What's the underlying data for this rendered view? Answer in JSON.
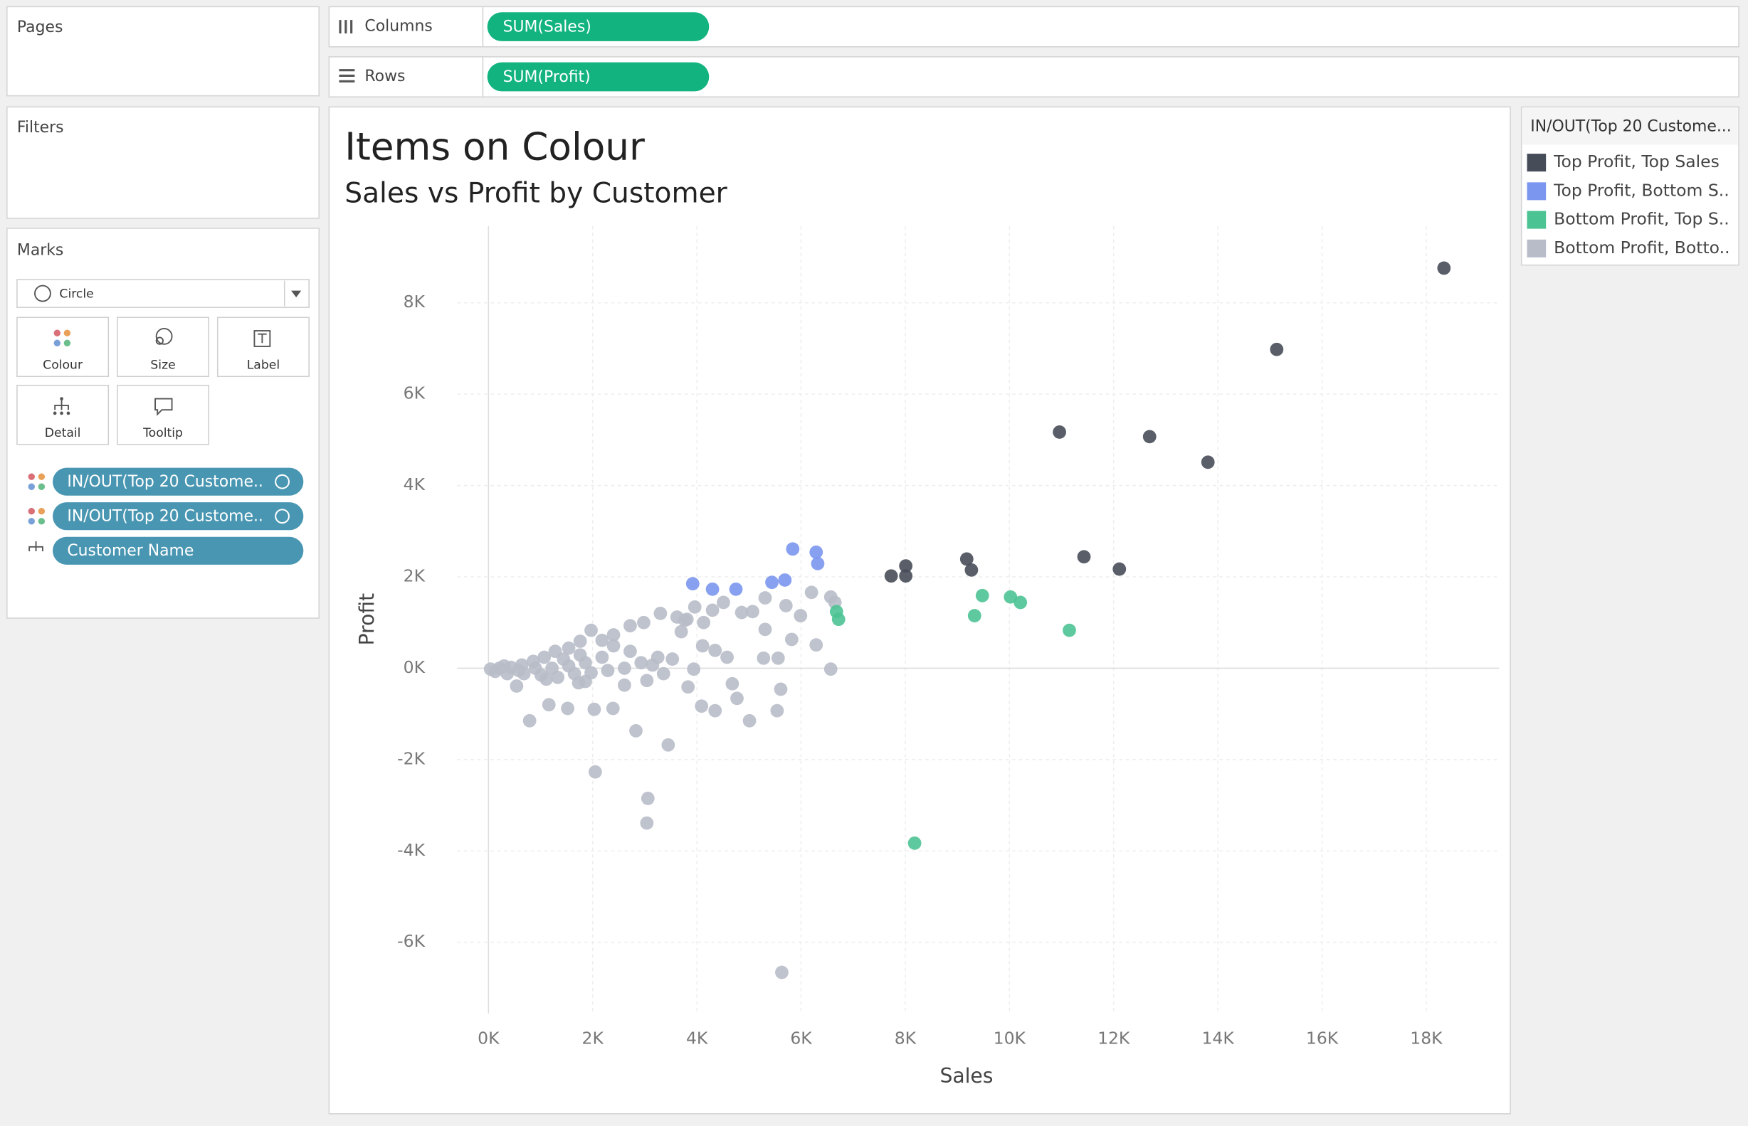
{
  "shelves": {
    "columns": {
      "label": "Columns",
      "pill": "SUM(Sales)"
    },
    "rows": {
      "label": "Rows",
      "pill": "SUM(Profit)"
    }
  },
  "panels": {
    "pages": "Pages",
    "filters": "Filters",
    "marks": {
      "title": "Marks",
      "mark_type": "Circle",
      "buttons": [
        "Colour",
        "Size",
        "Label",
        "Detail",
        "Tooltip"
      ],
      "pills": [
        "IN/OUT(Top 20 Custome..",
        "IN/OUT(Top 20 Custome..",
        "Customer Name"
      ]
    }
  },
  "chart_data": {
    "type": "scatter",
    "title": "Items on Colour",
    "subtitle": "Sales vs Profit by Customer",
    "x_label": "Sales",
    "y_label": "Profit",
    "legend_title": "IN/OUT(Top 20 Custome...",
    "legend": "right",
    "grid": true,
    "xlim": [
      -600,
      19400
    ],
    "ylim": [
      -7560,
      9680
    ],
    "xticks": [
      {
        "value": 0,
        "label": "0K"
      },
      {
        "value": 2000,
        "label": "2K"
      },
      {
        "value": 4000,
        "label": "4K"
      },
      {
        "value": 6000,
        "label": "6K"
      },
      {
        "value": 8000,
        "label": "8K"
      },
      {
        "value": 10000,
        "label": "10K"
      },
      {
        "value": 12000,
        "label": "12K"
      },
      {
        "value": 14000,
        "label": "14K"
      },
      {
        "value": 16000,
        "label": "16K"
      },
      {
        "value": 18000,
        "label": "18K"
      }
    ],
    "yticks": [
      {
        "value": -6000,
        "label": "-6K"
      },
      {
        "value": -4000,
        "label": "-4K"
      },
      {
        "value": -2000,
        "label": "-2K"
      },
      {
        "value": 0,
        "label": "0K"
      },
      {
        "value": 2000,
        "label": "2K"
      },
      {
        "value": 4000,
        "label": "4K"
      },
      {
        "value": 6000,
        "label": "6K"
      },
      {
        "value": 8000,
        "label": "8K"
      }
    ],
    "series": [
      {
        "name": "Top Profit, Top Sales",
        "color": "#474c59",
        "x": [
          18340,
          15130,
          10960,
          12690,
          13810,
          11430,
          12110,
          9180,
          9270,
          7730,
          8010,
          8010
        ],
        "values": [
          8760,
          6980,
          5170,
          5070,
          4510,
          2440,
          2170,
          2390,
          2150,
          2020,
          2020,
          2240
        ]
      },
      {
        "name": "Top Profit, Bottom S..",
        "color": "#7b96ee",
        "x": [
          5840,
          6290,
          6320,
          3920,
          4300,
          4750,
          5440,
          5690
        ],
        "values": [
          2610,
          2540,
          2290,
          1850,
          1730,
          1730,
          1880,
          1930
        ]
      },
      {
        "name": "Bottom Profit, Top S..",
        "color": "#4cc393",
        "x": [
          8180,
          9330,
          9480,
          10020,
          10210,
          11150,
          6680,
          6720
        ],
        "values": [
          -3830,
          1150,
          1590,
          1560,
          1440,
          830,
          1240,
          1070
        ]
      },
      {
        "name": "Bottom Profit, Botto..",
        "color": "#b8bcc8",
        "x": [
          5630,
          3040,
          3060,
          2050,
          3450,
          2830,
          790,
          5010,
          5540,
          4350,
          4090,
          4770,
          2390,
          2030,
          1520,
          1160,
          540,
          1730,
          3040,
          3830,
          4680,
          5610,
          6570,
          6290,
          5820,
          5310,
          5280,
          5560,
          4580,
          4350,
          3940,
          3530,
          3150,
          3700,
          4130,
          3810,
          3620,
          3960,
          4300,
          4510,
          4860,
          5070,
          5310,
          5710,
          5990,
          6200,
          6570,
          6650,
          3300,
          2980,
          2720,
          2400,
          1970,
          1760,
          1540,
          1280,
          1070,
          860,
          640,
          430,
          210,
          40,
          130,
          360,
          680,
          1010,
          1330,
          1650,
          1970,
          2290,
          2610,
          2930,
          3250,
          2180,
          1860,
          1540,
          1220,
          900,
          580,
          300,
          1760,
          2400,
          2720,
          2180,
          1440,
          1110,
          1860,
          2610,
          3360,
          4110,
          3770
        ],
        "values": [
          -6660,
          -3390,
          -2850,
          -2270,
          -1680,
          -1370,
          -1150,
          -1150,
          -930,
          -930,
          -830,
          -660,
          -880,
          -900,
          -880,
          -800,
          -390,
          -320,
          -270,
          -410,
          -340,
          -460,
          -20,
          510,
          630,
          850,
          220,
          220,
          240,
          390,
          -20,
          200,
          70,
          800,
          1000,
          1070,
          1120,
          1340,
          1270,
          1440,
          1220,
          1240,
          1540,
          1370,
          1150,
          1660,
          1560,
          1440,
          1200,
          1000,
          930,
          730,
          830,
          590,
          440,
          370,
          240,
          150,
          70,
          20,
          0,
          -20,
          -70,
          -120,
          -120,
          -150,
          -200,
          -120,
          -100,
          -50,
          0,
          120,
          240,
          240,
          120,
          50,
          0,
          0,
          -50,
          50,
          290,
          490,
          370,
          610,
          200,
          -240,
          -290,
          -370,
          -120,
          490,
          1050
        ]
      }
    ]
  }
}
